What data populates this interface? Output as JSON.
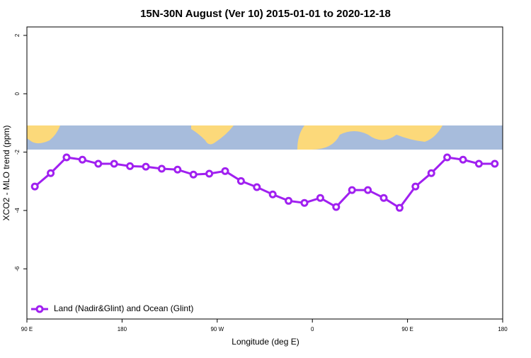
{
  "chart_data": {
    "type": "line",
    "title": "15N-30N August (Ver 10)   2015-01-01 to 2020-12-18",
    "x_label": "Longitude (deg E)",
    "y_label": "XCO2 - MLO trend (ppm)",
    "x": [
      97.5,
      112.5,
      127.5,
      142.5,
      157.5,
      172.5,
      187.5,
      202.5,
      217.5,
      232.5,
      247.5,
      262.5,
      277.5,
      292.5,
      307.5,
      322.5,
      337.5,
      352.5,
      367.5,
      382.5,
      397.5,
      412.5,
      427.5,
      442.5,
      457.5,
      472.5,
      487.5,
      502.5,
      517.5,
      532.5
    ],
    "series": [
      {
        "name": "Land (Nadir&Glint) and Ocean (Glint)",
        "color": "#a020f0",
        "values": [
          -3.18,
          -2.72,
          -2.18,
          -2.26,
          -2.4,
          -2.4,
          -2.48,
          -2.5,
          -2.57,
          -2.6,
          -2.77,
          -2.74,
          -2.65,
          -2.99,
          -3.2,
          -3.45,
          -3.67,
          -3.74,
          -3.57,
          -3.88,
          -3.3,
          -3.3,
          -3.57,
          -3.91,
          -3.18,
          -2.72,
          -2.18,
          -2.26,
          -2.4,
          -2.4
        ]
      }
    ],
    "xlim": [
      90,
      540
    ],
    "ylim": [
      -7.72,
      2.29
    ],
    "xticks": [
      {
        "value": 90,
        "label": "90 E"
      },
      180,
      {
        "value": 270,
        "label": "90 W"
      },
      {
        "value": 360,
        "label": "0"
      },
      {
        "value": 450,
        "label": "90 E"
      },
      {
        "value": 540,
        "label": "180"
      }
    ],
    "yticks": [
      2,
      0,
      -2,
      -4,
      -6
    ],
    "legend": "bottom-left"
  }
}
